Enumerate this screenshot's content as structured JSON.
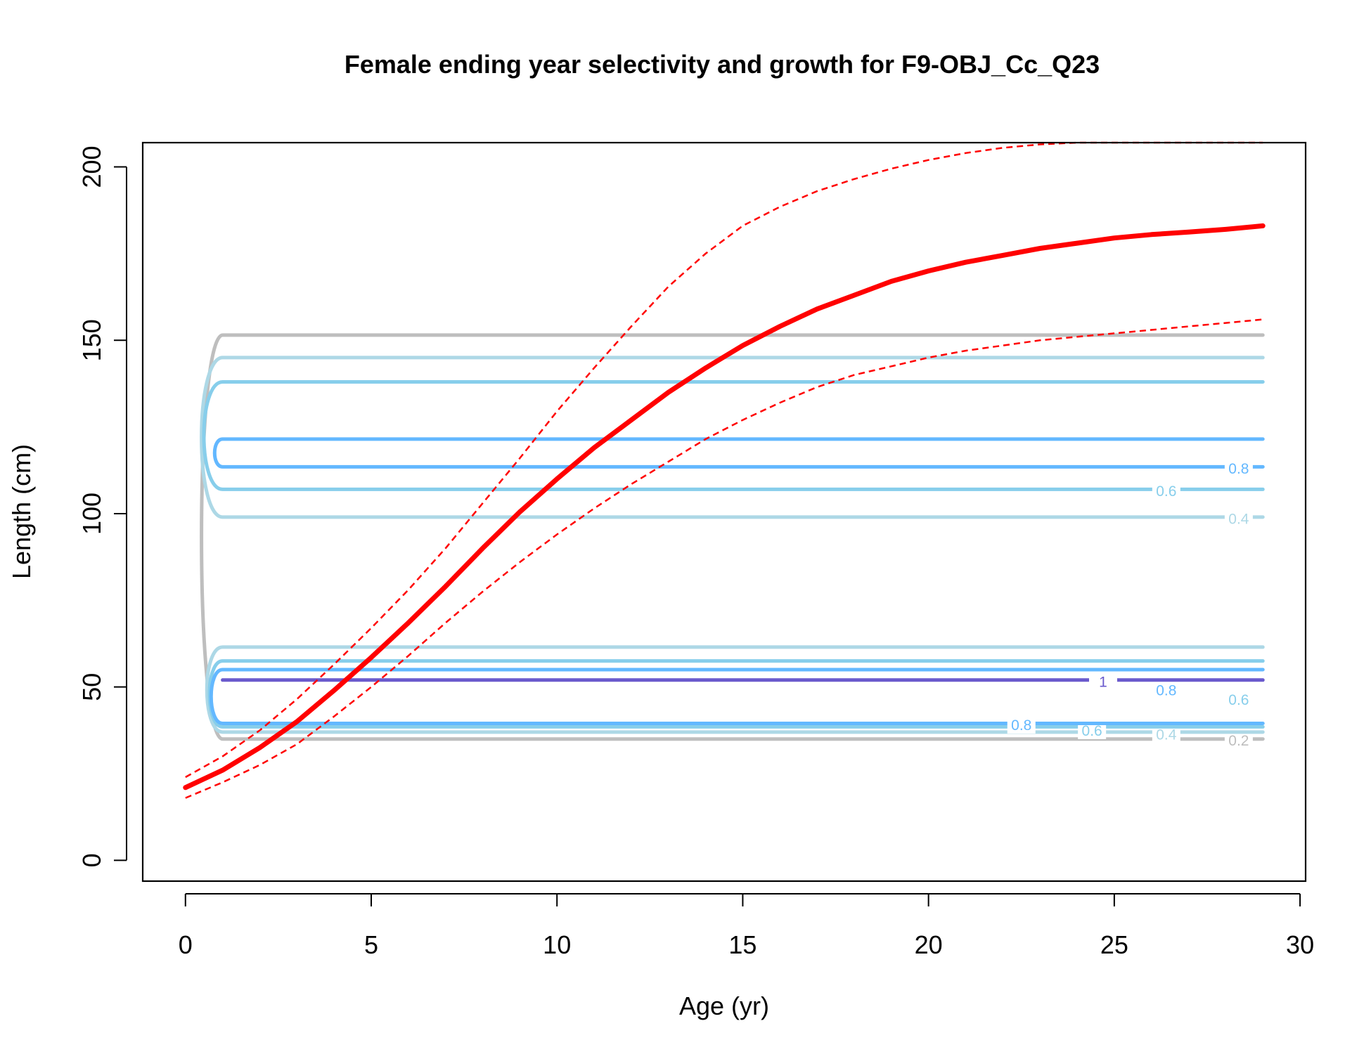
{
  "chart_data": {
    "type": "line",
    "title": "Female ending year selectivity and growth for F9-OBJ_Cc_Q23",
    "xlabel": "Age (yr)",
    "ylabel": "Length (cm)",
    "xlim": [
      -1.15,
      30.15
    ],
    "ylim": [
      -6,
      207
    ],
    "xticks": [
      0,
      5,
      10,
      15,
      20,
      25,
      30
    ],
    "yticks": [
      0,
      50,
      100,
      150,
      200
    ],
    "grid": false,
    "growth": {
      "color": "#FF0000",
      "x": [
        0,
        1,
        2,
        3,
        4,
        5,
        6,
        7,
        8,
        9,
        10,
        11,
        12,
        13,
        14,
        15,
        16,
        17,
        18,
        19,
        20,
        21,
        22,
        23,
        24,
        25,
        26,
        27,
        28,
        29
      ],
      "mean": [
        21,
        26,
        32.5,
        40,
        49,
        58.5,
        68.5,
        79,
        90,
        100.5,
        110,
        119,
        127,
        135,
        142,
        148.5,
        154,
        159,
        163,
        167,
        170,
        172.5,
        174.5,
        176.5,
        178,
        179.5,
        180.5,
        181.2,
        182,
        183
      ],
      "upper": [
        24,
        30,
        37.5,
        46.5,
        56.5,
        67,
        78,
        90,
        103,
        116,
        129.5,
        142,
        154,
        165.5,
        175,
        183,
        188.5,
        193,
        196.5,
        199.5,
        202,
        204,
        205.5,
        206.5,
        207.3,
        208,
        208.6,
        209.1,
        209.6,
        210
      ],
      "lower": [
        18,
        22.5,
        27.5,
        33.5,
        41.5,
        50,
        59,
        68.5,
        77.5,
        86,
        94,
        101.5,
        108.5,
        115,
        121.5,
        127,
        132,
        136.5,
        140,
        142.5,
        145,
        147,
        148.5,
        150,
        151,
        152,
        153,
        154,
        155,
        156
      ]
    },
    "contours": [
      {
        "level": 0.2,
        "color": "#BEBEBE",
        "bands": [
          [
            35,
            151.5
          ]
        ],
        "labels": [
          {
            "text": "0.2",
            "x": 28.35,
            "y": 34.5
          }
        ]
      },
      {
        "level": 0.4,
        "color": "#ADD8E6",
        "bands": [
          [
            99,
            145
          ],
          [
            37,
            61.5
          ]
        ],
        "labels": [
          {
            "text": "0.4",
            "x": 28.35,
            "y": 98.5
          },
          {
            "text": "0.4",
            "x": 26.4,
            "y": 36.3
          }
        ]
      },
      {
        "level": 0.6,
        "color": "#87CEEB",
        "bands": [
          [
            107,
            138
          ],
          [
            38.5,
            57.5
          ]
        ],
        "labels": [
          {
            "text": "0.6",
            "x": 26.4,
            "y": 106.5
          },
          {
            "text": "0.6",
            "x": 28.35,
            "y": 46.3
          },
          {
            "text": "0.6",
            "x": 24.4,
            "y": 37.4
          }
        ]
      },
      {
        "level": 0.8,
        "color": "#63B8FF",
        "bands": [
          [
            113.5,
            121.5
          ],
          [
            39.5,
            55
          ]
        ],
        "labels": [
          {
            "text": "0.8",
            "x": 28.35,
            "y": 113
          },
          {
            "text": "0.8",
            "x": 26.4,
            "y": 49
          },
          {
            "text": "0.8",
            "x": 22.5,
            "y": 39
          }
        ]
      },
      {
        "level": 1,
        "color": "#6A5ACD",
        "bands": [
          [
            52,
            52
          ]
        ],
        "labels": [
          {
            "text": "1",
            "x": 24.7,
            "y": 51.5
          }
        ]
      }
    ]
  }
}
